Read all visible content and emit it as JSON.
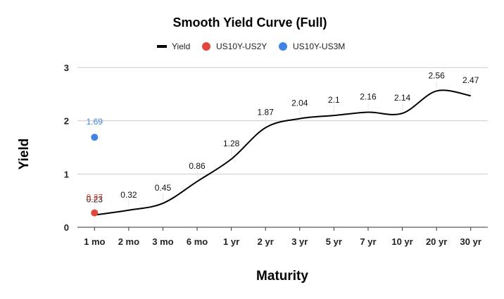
{
  "chart_data": {
    "type": "line",
    "title": "Smooth Yield Curve (Full)",
    "xlabel": "Maturity",
    "ylabel": "Yield",
    "ylim": [
      0,
      3
    ],
    "yticks": [
      "0",
      "1",
      "2",
      "3"
    ],
    "grid": true,
    "legend_position": "top-center",
    "categories": [
      "1 mo",
      "2 mo",
      "3 mo",
      "6 mo",
      "1 yr",
      "2 yr",
      "3 yr",
      "5 yr",
      "7 yr",
      "10 yr",
      "20 yr",
      "30 yr"
    ],
    "series": [
      {
        "name": "Yield",
        "kind": "line",
        "color": "#000000",
        "values": [
          0.23,
          0.32,
          0.45,
          0.86,
          1.28,
          1.87,
          2.04,
          2.1,
          2.16,
          2.14,
          2.56,
          2.47
        ],
        "labels": [
          "0.23",
          "0.32",
          "0.45",
          "0.86",
          "1.28",
          "1.87",
          "2.04",
          "2.1",
          "2.16",
          "2.14",
          "2.56",
          "2.47"
        ]
      },
      {
        "name": "US10Y-US2Y",
        "kind": "point",
        "color": "#e2453c",
        "x": "1 mo",
        "value": 0.27,
        "label": "0.27"
      },
      {
        "name": "US10Y-US3M",
        "kind": "point",
        "color": "#3f84e5",
        "x": "1 mo",
        "value": 1.69,
        "label": "1.69"
      }
    ]
  }
}
